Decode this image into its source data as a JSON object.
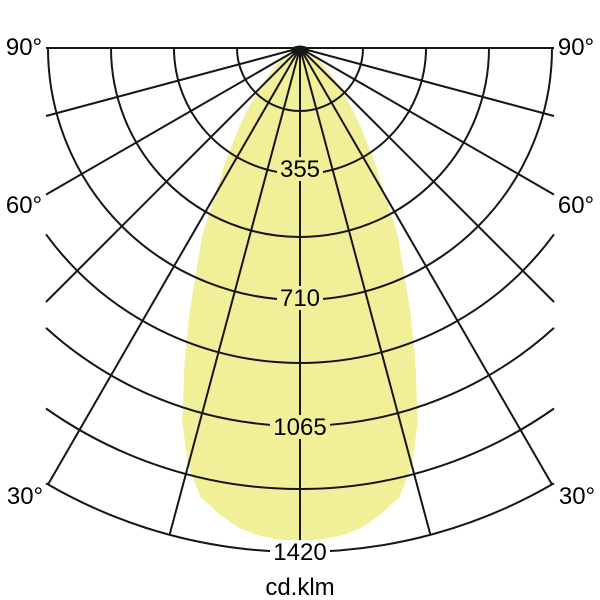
{
  "diagram": {
    "unit_label": "cd.klm",
    "angle_labels": {
      "left": [
        "90°",
        "60°",
        "30°"
      ],
      "right": [
        "90°",
        "60°",
        "30°"
      ]
    },
    "ring_labels": [
      "355",
      "710",
      "1065",
      "1420"
    ]
  },
  "colors": {
    "background": "#ffffff",
    "lobe_fill": "#f2ef99",
    "grid_line": "#161616",
    "text": "#000000"
  },
  "chart_data": {
    "type": "line",
    "variant": "polar-photometric-intensity-distribution",
    "title": "",
    "unit": "cd.klm",
    "angle_grid_step_deg": 15,
    "labeled_angles_deg": [
      90,
      60,
      30
    ],
    "ring_values": [
      355,
      710,
      1065,
      1420
    ],
    "minor_ring_value_step": 177.5,
    "symmetric_about_vertical": true,
    "max_intensity": 1390,
    "curve": {
      "angle_deg": [
        0,
        2.5,
        5,
        7.5,
        10,
        12.5,
        15,
        17.5,
        20,
        22.5,
        25,
        27.5,
        30,
        32.5,
        35,
        37.5,
        40,
        45,
        50,
        55,
        60,
        65,
        70,
        75,
        80,
        85,
        90
      ],
      "intensity": [
        1390,
        1386,
        1378,
        1361,
        1330,
        1296,
        1217,
        1104,
        952,
        817,
        690,
        598,
        479,
        400,
        335,
        282,
        237,
        163,
        113,
        76,
        51,
        34,
        23,
        17,
        11,
        8,
        6
      ]
    }
  }
}
